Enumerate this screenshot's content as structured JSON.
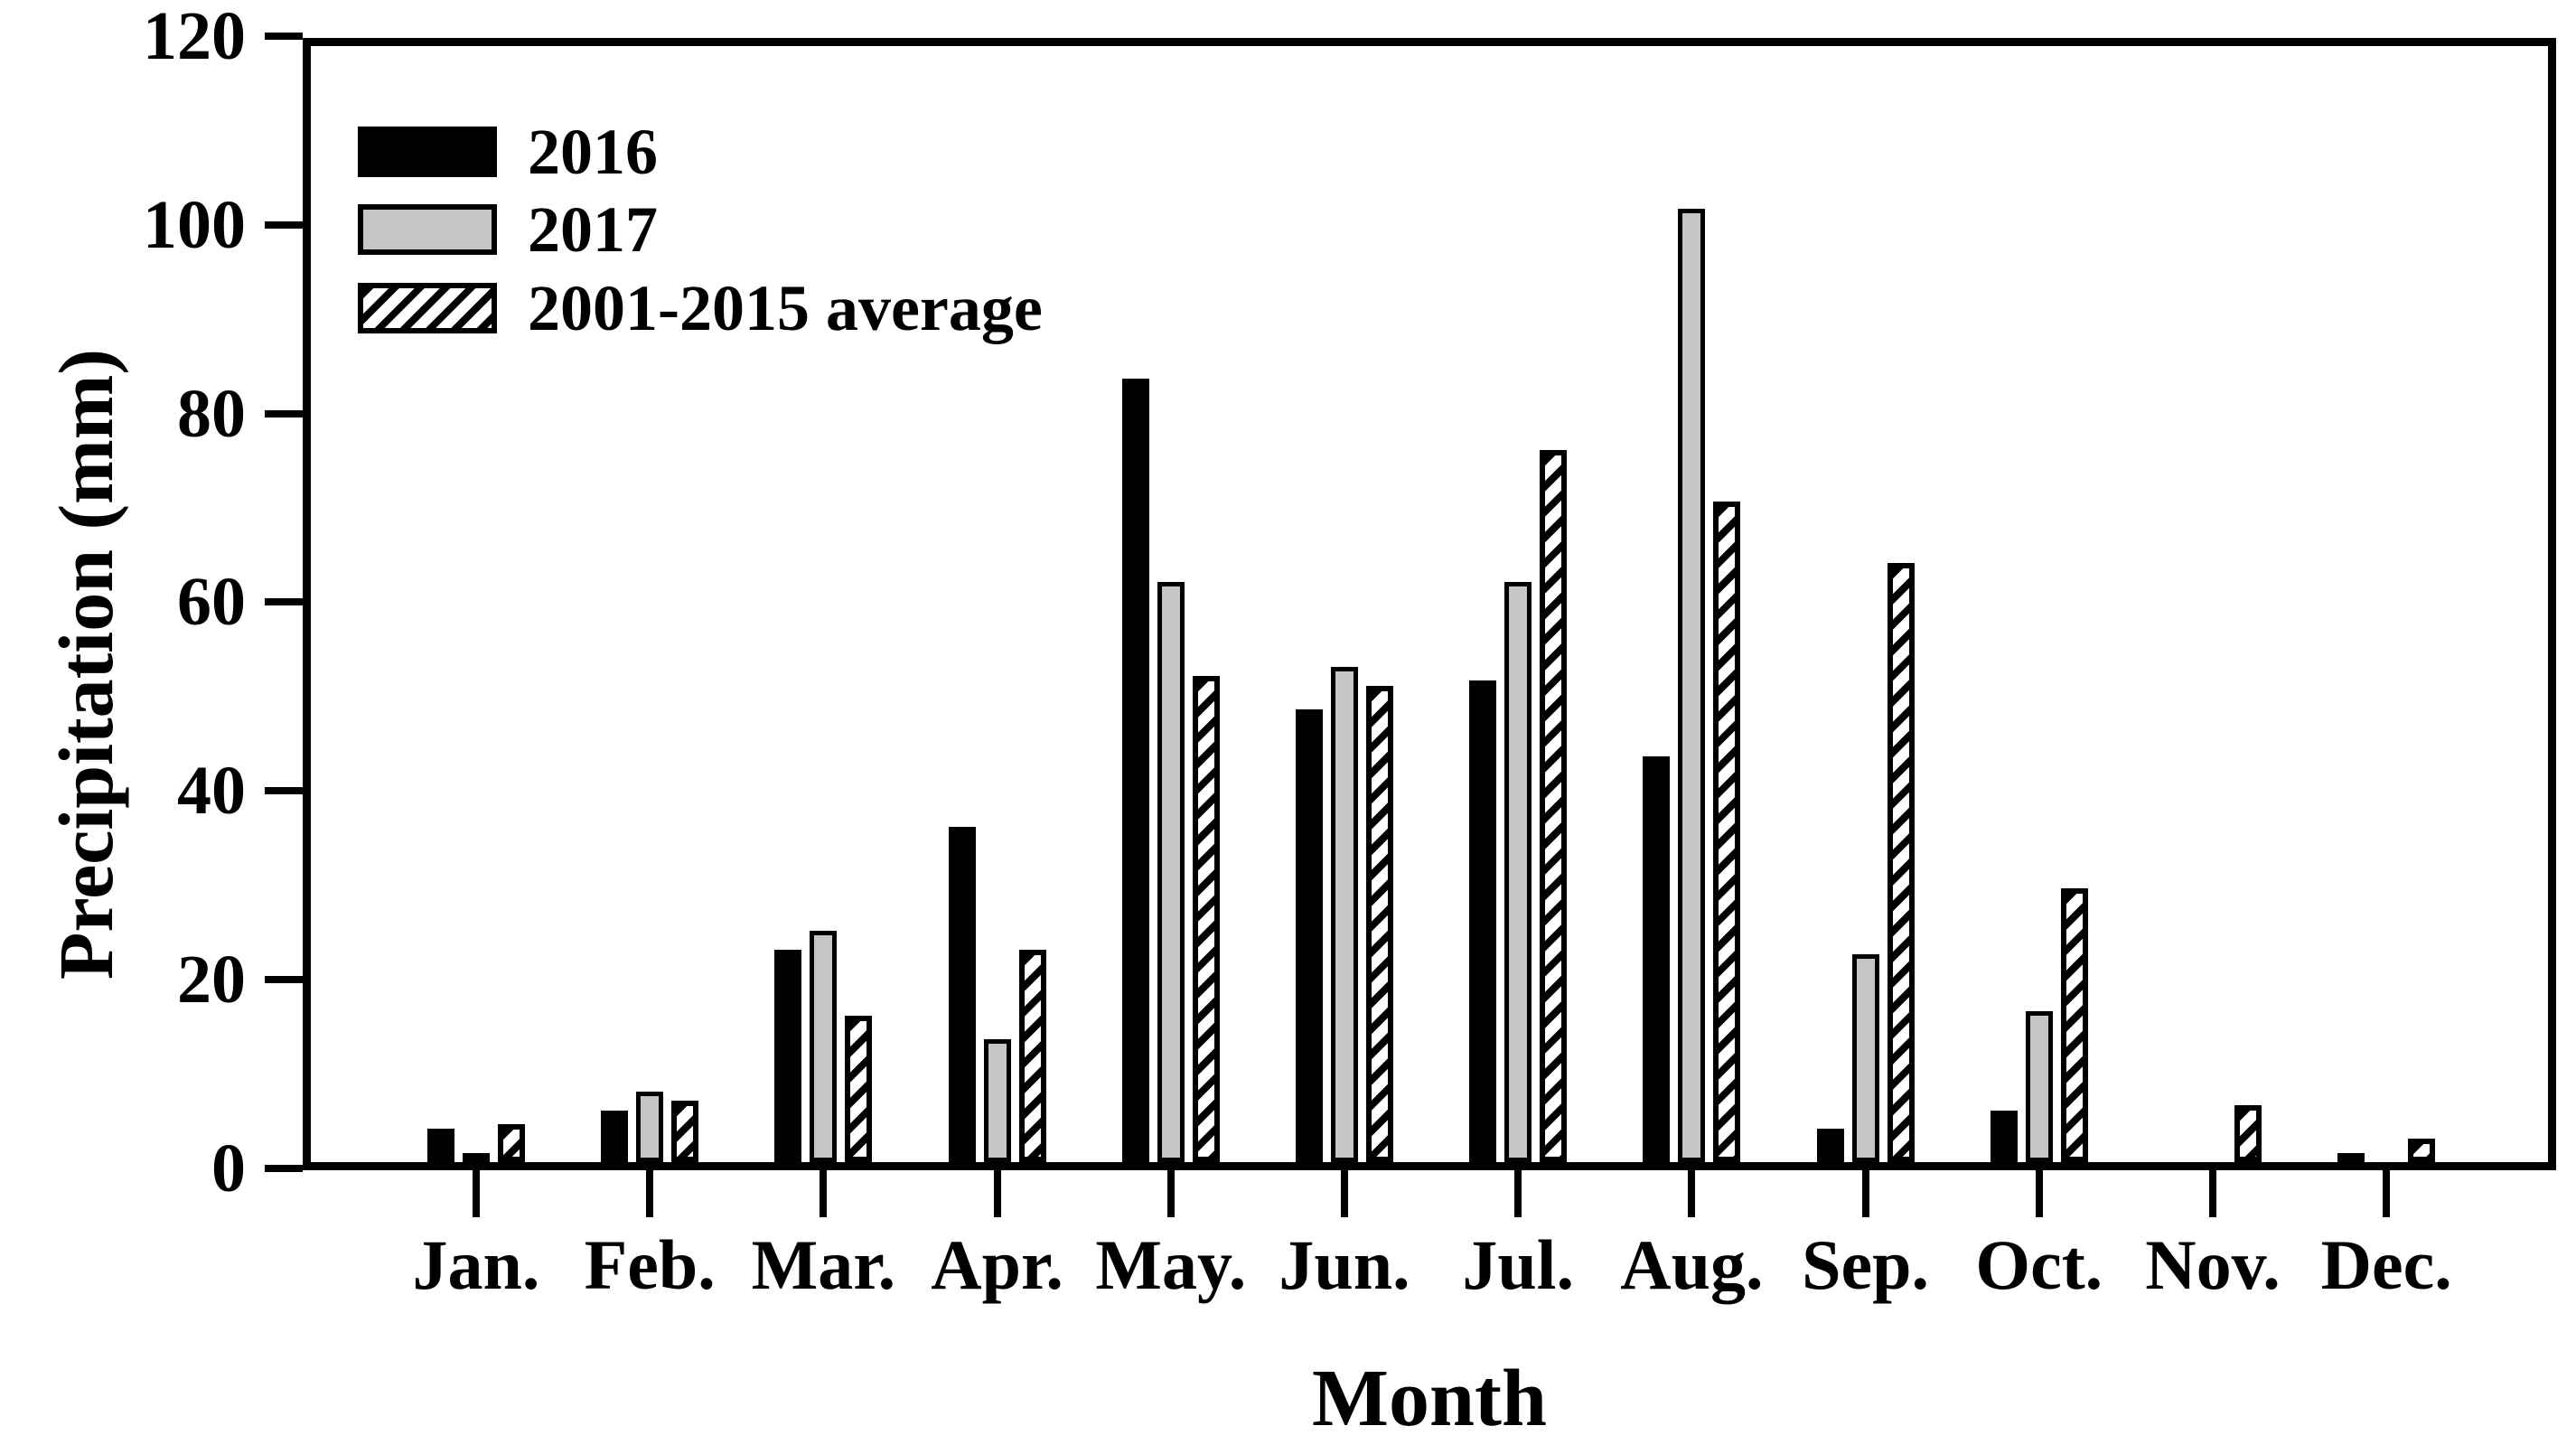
{
  "axes": {
    "y_ticks": [
      0,
      20,
      40,
      60,
      80,
      100,
      120
    ],
    "y_label": "Precipitation (mm)",
    "x_label": "Month"
  },
  "legend": {
    "items": [
      {
        "label": "2016",
        "style": "solid-black"
      },
      {
        "label": "2017",
        "style": "solid-gray"
      },
      {
        "label": "2001-2015 average",
        "style": "hatched"
      }
    ]
  },
  "colors": {
    "series_2016": "#000000",
    "series_2017": "#c6c6c6",
    "series_average": "black-white-diagonal-hatch",
    "axis": "#000000",
    "background": "#ffffff"
  },
  "chart_data": {
    "type": "bar",
    "title": "",
    "xlabel": "Month",
    "ylabel": "Precipitation (mm)",
    "ylim": [
      0,
      120
    ],
    "grid": false,
    "legend_position": "top-left-inside",
    "categories": [
      "Jan.",
      "Feb.",
      "Mar.",
      "Apr.",
      "May.",
      "Jun.",
      "Jul.",
      "Aug.",
      "Sep.",
      "Oct.",
      "Nov.",
      "Dec."
    ],
    "series": [
      {
        "name": "2016",
        "values": [
          3.5,
          5.5,
          22.5,
          35.5,
          83,
          48,
          51,
          43,
          3.5,
          5.5,
          0,
          1
        ]
      },
      {
        "name": "2017",
        "values": [
          1,
          7.5,
          24.5,
          13,
          61.5,
          52.5,
          61.5,
          101,
          22,
          16,
          0,
          0
        ]
      },
      {
        "name": "2001-2015 average",
        "values": [
          4,
          6.5,
          15.5,
          22.5,
          51.5,
          50.5,
          75.5,
          70,
          63.5,
          29,
          6,
          2.5
        ]
      }
    ]
  }
}
